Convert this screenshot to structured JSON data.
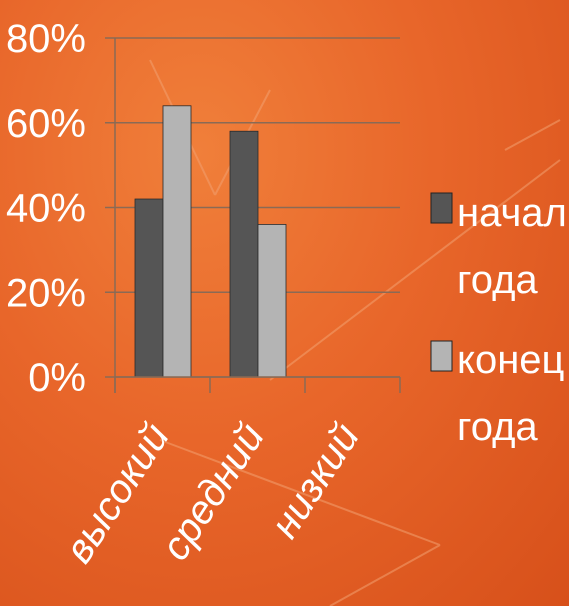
{
  "chart_data": {
    "type": "bar",
    "categories": [
      "высокий",
      "средний",
      "низкий"
    ],
    "series": [
      {
        "name": "начало года",
        "values": [
          42,
          58,
          0
        ],
        "color": "#555555"
      },
      {
        "name": "конец года",
        "values": [
          64,
          36,
          0
        ],
        "color": "#b4b4b4"
      }
    ],
    "ylim": [
      0,
      80
    ],
    "yticks": [
      "0%",
      "20%",
      "40%",
      "60%",
      "80%"
    ],
    "grid": true,
    "legend_position": "right"
  },
  "legend": {
    "series_1": {
      "line1": "начало",
      "line2": "года"
    },
    "series_2": {
      "line1": "конец",
      "line2": "года"
    }
  }
}
